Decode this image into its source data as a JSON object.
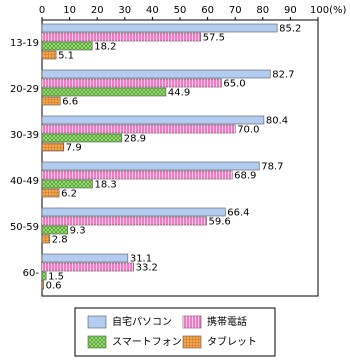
{
  "chart_data": {
    "type": "hbar",
    "categories": [
      "13-19",
      "20-29",
      "30-39",
      "40-49",
      "50-59",
      "60-"
    ],
    "series": [
      {
        "name": "自宅パソコン",
        "color": "#b3cdf2",
        "values": [
          85.2,
          82.7,
          80.4,
          78.7,
          66.4,
          31.1
        ],
        "value_labels": [
          "85.2",
          "82.7",
          "80.4",
          "78.7",
          "66.4",
          "31.1"
        ]
      },
      {
        "name": "携帯電話",
        "color": "#f27ac4",
        "values": [
          57.5,
          65.0,
          70.0,
          68.9,
          59.6,
          33.2
        ],
        "value_labels": [
          "57.5",
          "65.0",
          "70.0",
          "68.9",
          "59.6",
          "33.2"
        ]
      },
      {
        "name": "スマートフォン",
        "color": "#9fe07a",
        "values": [
          18.2,
          44.9,
          28.9,
          18.3,
          9.3,
          1.5
        ],
        "value_labels": [
          "18.2",
          "44.9",
          "28.9",
          "18.3",
          "9.3",
          "1.5"
        ]
      },
      {
        "name": "タブレット",
        "color": "#f5a64a",
        "values": [
          5.1,
          6.6,
          7.9,
          6.2,
          2.8,
          0.6
        ],
        "value_labels": [
          "5.1",
          "6.6",
          "7.9",
          "6.2",
          "2.8",
          "0.6"
        ]
      }
    ],
    "xlim": [
      0,
      100
    ],
    "xticks": [
      0,
      10,
      20,
      30,
      40,
      50,
      60,
      70,
      80,
      90,
      {
        "value": 100,
        "label": "100(%)"
      }
    ]
  }
}
